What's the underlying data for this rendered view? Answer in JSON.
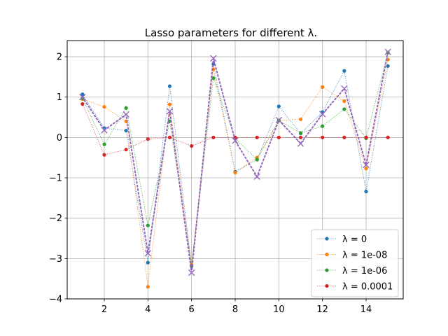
{
  "chart_data": {
    "type": "line",
    "title": "Lasso parameters for different λ.",
    "xlabel": "",
    "ylabel": "",
    "xlim": [
      0.3,
      15.7
    ],
    "ylim": [
      -4,
      2.4
    ],
    "xticks": [
      2,
      4,
      6,
      8,
      10,
      12,
      14
    ],
    "yticks": [
      -4,
      -3,
      -2,
      -1,
      0,
      1,
      2
    ],
    "grid": true,
    "legend_position": "lower-right",
    "x": [
      1,
      2,
      3,
      4,
      5,
      6,
      7,
      8,
      9,
      10,
      11,
      12,
      13,
      14,
      15
    ],
    "series": [
      {
        "name": "λ = 0",
        "color": "#1f77b4",
        "marker": "dot",
        "style": "dotted",
        "values": [
          1.07,
          0.23,
          0.17,
          -3.1,
          1.27,
          -3.19,
          1.82,
          -0.85,
          -0.55,
          0.77,
          0.1,
          0.63,
          1.65,
          -1.34,
          1.77
        ]
      },
      {
        "name": "λ = 1e-08",
        "color": "#ff7f0e",
        "marker": "dot",
        "style": "dotted",
        "values": [
          0.95,
          0.76,
          0.4,
          -3.7,
          0.82,
          -3.15,
          1.69,
          -0.87,
          -0.5,
          0.42,
          0.45,
          1.25,
          0.9,
          -0.77,
          1.93
        ]
      },
      {
        "name": "λ = 1e-06",
        "color": "#2ca02c",
        "marker": "dot",
        "style": "dotted",
        "values": [
          0.97,
          -0.17,
          0.73,
          -2.18,
          0.4,
          -3.18,
          1.47,
          -0.02,
          -0.55,
          0.42,
          0.11,
          0.28,
          0.7,
          -0.02,
          2.1
        ]
      },
      {
        "name": "λ = 0.0001",
        "color": "#d62728",
        "marker": "dot",
        "style": "dotted",
        "values": [
          0.83,
          -0.43,
          -0.3,
          -0.04,
          0.0,
          -0.21,
          0.0,
          0.0,
          0.0,
          0.0,
          0.0,
          0.0,
          0.0,
          0.0,
          0.0
        ]
      },
      {
        "name": "",
        "color": "#9467bd",
        "marker": "x",
        "style": "dotted-bold",
        "values": [
          1.0,
          0.18,
          0.57,
          -2.87,
          0.65,
          -3.35,
          1.96,
          -0.08,
          -0.97,
          0.43,
          -0.15,
          0.58,
          1.21,
          -0.68,
          2.12
        ]
      }
    ]
  }
}
